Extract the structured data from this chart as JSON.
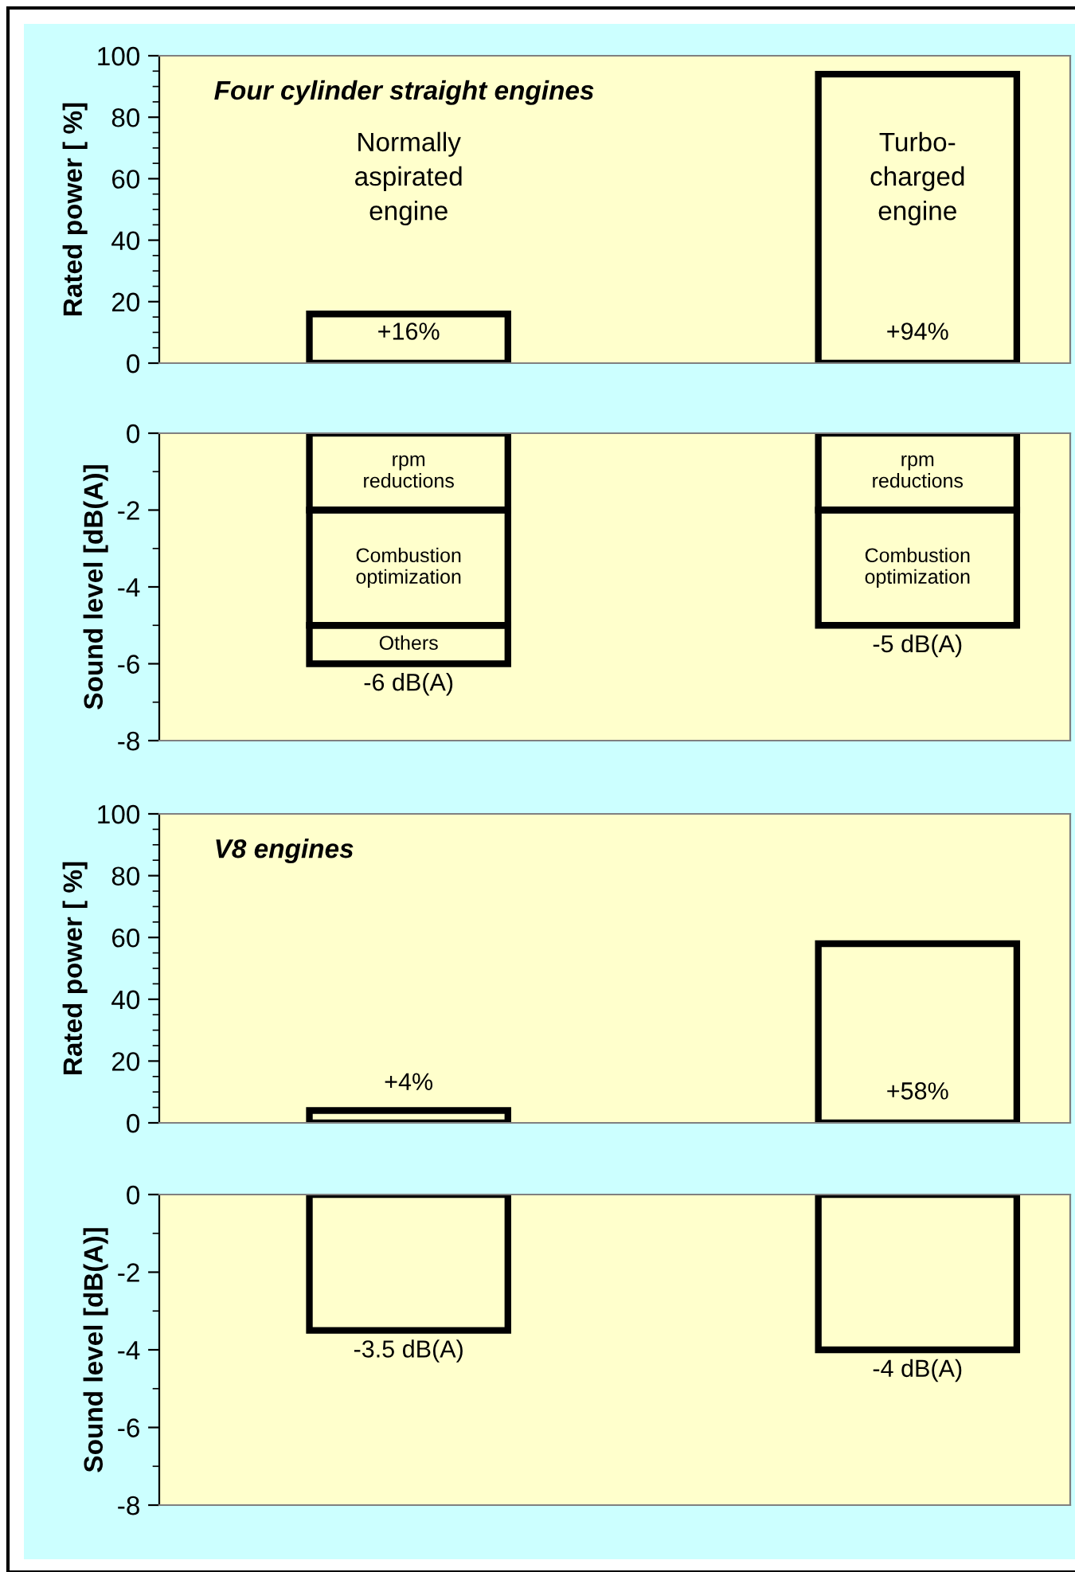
{
  "chart_data": [
    {
      "type": "bar",
      "title": "Four cylinder straight engines",
      "categories": [
        "Normally aspirated engine",
        "Turbo-charged engine"
      ],
      "values": [
        16,
        94
      ],
      "color": "#000000",
      "value_labels": [
        "+16%",
        "+94%"
      ],
      "ylabel": "Rated power [ %]",
      "ylim": [
        0,
        100
      ],
      "yticks": [
        0,
        20,
        40,
        60,
        80,
        100
      ],
      "grid": false
    },
    {
      "type": "bar",
      "categories": [
        null,
        null
      ],
      "stacked": true,
      "series": [
        {
          "name": "rpm reductions",
          "color": "#000000",
          "values": [
            -2,
            -2
          ]
        },
        {
          "name": "Combustion optimization",
          "color": "#000000",
          "values": [
            -3,
            -3
          ]
        },
        {
          "name": "Others",
          "color": "#000000",
          "values": [
            -1,
            null
          ]
        }
      ],
      "totals": [
        "-6 dB(A)",
        "-5 dB(A)"
      ],
      "ylabel": "Sound level [dB(A)]",
      "ylim": [
        -8,
        0
      ],
      "yticks": [
        -8,
        -6,
        -4,
        -2,
        0
      ],
      "tick_labels": "y",
      "grid": false
    },
    {
      "type": "bar",
      "title": "V8 engines",
      "categories": [
        null,
        null
      ],
      "values": [
        4,
        58
      ],
      "color": "#000000",
      "value_labels": [
        "+4%",
        "+58%"
      ],
      "ylabel": "Rated power [ %]",
      "ylim": [
        0,
        100
      ],
      "yticks": [
        0,
        20,
        40,
        60,
        80,
        100
      ],
      "tick_labels": "y",
      "grid": false
    },
    {
      "type": "bar",
      "categories": [
        null,
        null
      ],
      "values": [
        -3.5,
        -4
      ],
      "color": "#000000",
      "value_labels": [
        "-3.5 dB(A)",
        "-4 dB(A)"
      ],
      "ylabel": "Sound level [dB(A)]",
      "ylim": [
        -8,
        0
      ],
      "yticks": [
        -8,
        -6,
        -4,
        -2,
        0
      ],
      "tick_labels": "y",
      "grid": false
    }
  ]
}
